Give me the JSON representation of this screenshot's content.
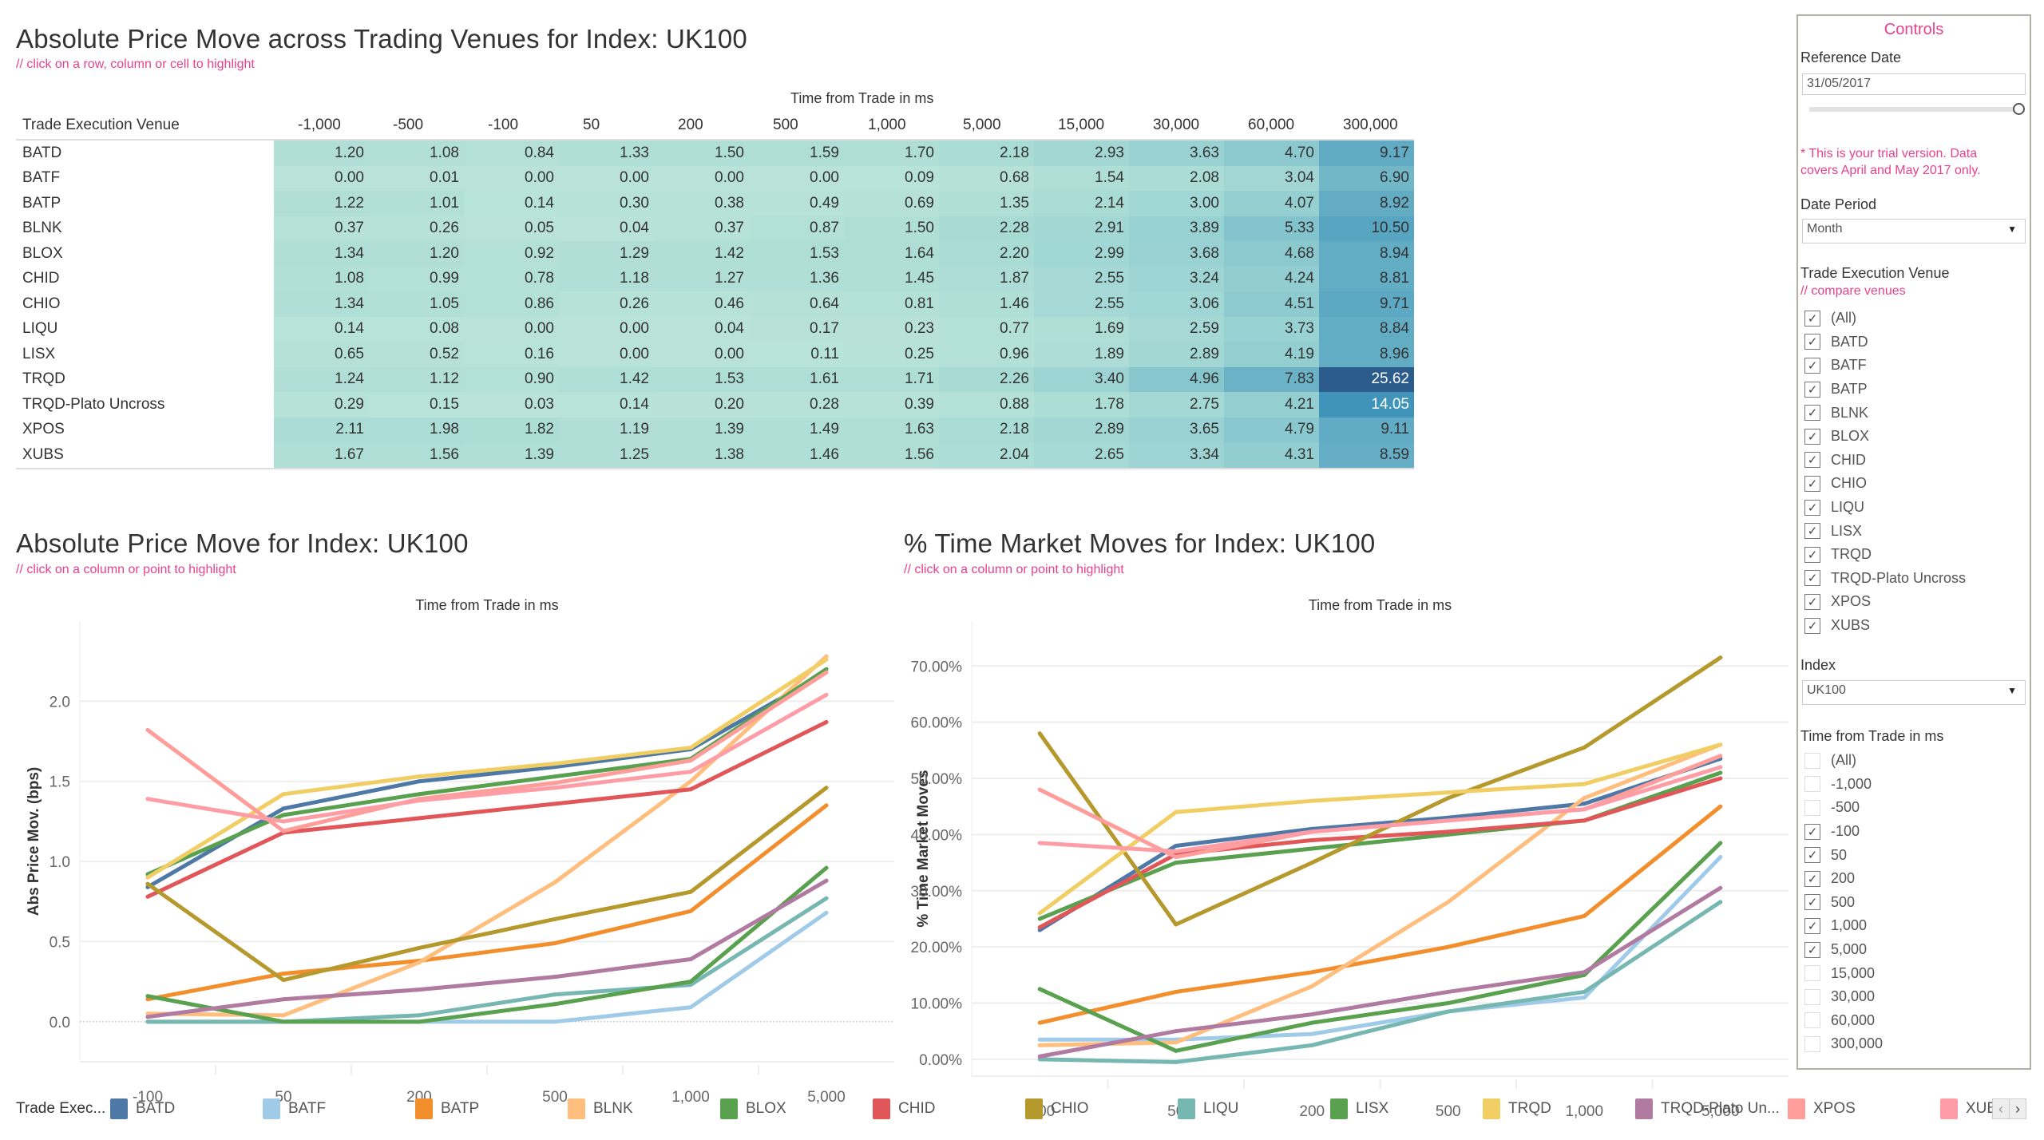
{
  "heatmap": {
    "title": "Absolute Price Move across Trading Venues for Index: UK100",
    "hint": "// click on a row, column or cell to highlight",
    "column_group_label": "Time from Trade in ms",
    "row_header": "Trade Execution Venue",
    "columns": [
      "-1,000",
      "-500",
      "-100",
      "50",
      "200",
      "500",
      "1,000",
      "5,000",
      "15,000",
      "30,000",
      "60,000",
      "300,000"
    ],
    "rows": [
      {
        "venue": "BATD",
        "values": [
          "1.20",
          "1.08",
          "0.84",
          "1.33",
          "1.50",
          "1.59",
          "1.70",
          "2.18",
          "2.93",
          "3.63",
          "4.70",
          "9.17"
        ]
      },
      {
        "venue": "BATF",
        "values": [
          "0.00",
          "0.01",
          "0.00",
          "0.00",
          "0.00",
          "0.00",
          "0.09",
          "0.68",
          "1.54",
          "2.08",
          "3.04",
          "6.90"
        ]
      },
      {
        "venue": "BATP",
        "values": [
          "1.22",
          "1.01",
          "0.14",
          "0.30",
          "0.38",
          "0.49",
          "0.69",
          "1.35",
          "2.14",
          "3.00",
          "4.07",
          "8.92"
        ]
      },
      {
        "venue": "BLNK",
        "values": [
          "0.37",
          "0.26",
          "0.05",
          "0.04",
          "0.37",
          "0.87",
          "1.50",
          "2.28",
          "2.91",
          "3.89",
          "5.33",
          "10.50"
        ]
      },
      {
        "venue": "BLOX",
        "values": [
          "1.34",
          "1.20",
          "0.92",
          "1.29",
          "1.42",
          "1.53",
          "1.64",
          "2.20",
          "2.99",
          "3.68",
          "4.68",
          "8.94"
        ]
      },
      {
        "venue": "CHID",
        "values": [
          "1.08",
          "0.99",
          "0.78",
          "1.18",
          "1.27",
          "1.36",
          "1.45",
          "1.87",
          "2.55",
          "3.24",
          "4.24",
          "8.81"
        ]
      },
      {
        "venue": "CHIO",
        "values": [
          "1.34",
          "1.05",
          "0.86",
          "0.26",
          "0.46",
          "0.64",
          "0.81",
          "1.46",
          "2.55",
          "3.06",
          "4.51",
          "9.71"
        ]
      },
      {
        "venue": "LIQU",
        "values": [
          "0.14",
          "0.08",
          "0.00",
          "0.00",
          "0.04",
          "0.17",
          "0.23",
          "0.77",
          "1.69",
          "2.59",
          "3.73",
          "8.84"
        ]
      },
      {
        "venue": "LISX",
        "values": [
          "0.65",
          "0.52",
          "0.16",
          "0.00",
          "0.00",
          "0.11",
          "0.25",
          "0.96",
          "1.89",
          "2.89",
          "4.19",
          "8.96"
        ]
      },
      {
        "venue": "TRQD",
        "values": [
          "1.24",
          "1.12",
          "0.90",
          "1.42",
          "1.53",
          "1.61",
          "1.71",
          "2.26",
          "3.40",
          "4.96",
          "7.83",
          "25.62"
        ]
      },
      {
        "venue": "TRQD-Plato Uncross",
        "values": [
          "0.29",
          "0.15",
          "0.03",
          "0.14",
          "0.20",
          "0.28",
          "0.39",
          "0.88",
          "1.78",
          "2.75",
          "4.21",
          "14.05"
        ]
      },
      {
        "venue": "XPOS",
        "values": [
          "2.11",
          "1.98",
          "1.82",
          "1.19",
          "1.39",
          "1.49",
          "1.63",
          "2.18",
          "2.89",
          "3.65",
          "4.79",
          "9.11"
        ]
      },
      {
        "venue": "XUBS",
        "values": [
          "1.67",
          "1.56",
          "1.39",
          "1.25",
          "1.38",
          "1.46",
          "1.56",
          "2.04",
          "2.65",
          "3.34",
          "4.31",
          "8.59"
        ]
      }
    ],
    "color_scale": {
      "low": "#b9e3d8",
      "high": "#2b5a8a"
    }
  },
  "chart_data": [
    {
      "type": "line",
      "title": "Absolute Price Move for Index: UK100",
      "hint": "// click on a column or point to highlight",
      "xlabel": "Time from Trade in ms",
      "ylabel": "Abs Price Mov. (bps)",
      "categories": [
        "-100",
        "50",
        "200",
        "500",
        "1,000",
        "5,000"
      ],
      "yticks": [
        "0.0",
        "0.5",
        "1.0",
        "1.5",
        "2.0"
      ],
      "ylim": [
        -0.25,
        2.5
      ],
      "grid": true,
      "series": [
        {
          "name": "BATD",
          "values": [
            0.84,
            1.33,
            1.5,
            1.59,
            1.7,
            2.18
          ]
        },
        {
          "name": "BATF",
          "values": [
            0.0,
            0.0,
            0.0,
            0.0,
            0.09,
            0.68
          ]
        },
        {
          "name": "BATP",
          "values": [
            0.14,
            0.3,
            0.38,
            0.49,
            0.69,
            1.35
          ]
        },
        {
          "name": "BLNK",
          "values": [
            0.05,
            0.04,
            0.37,
            0.87,
            1.5,
            2.28
          ]
        },
        {
          "name": "BLOX",
          "values": [
            0.92,
            1.29,
            1.42,
            1.53,
            1.64,
            2.2
          ]
        },
        {
          "name": "CHID",
          "values": [
            0.78,
            1.18,
            1.27,
            1.36,
            1.45,
            1.87
          ]
        },
        {
          "name": "CHIO",
          "values": [
            0.86,
            0.26,
            0.46,
            0.64,
            0.81,
            1.46
          ]
        },
        {
          "name": "LIQU",
          "values": [
            0.0,
            0.0,
            0.04,
            0.17,
            0.23,
            0.77
          ]
        },
        {
          "name": "LISX",
          "values": [
            0.16,
            0.0,
            0.0,
            0.11,
            0.25,
            0.96
          ]
        },
        {
          "name": "TRQD",
          "values": [
            0.9,
            1.42,
            1.53,
            1.61,
            1.71,
            2.26
          ]
        },
        {
          "name": "TRQD-Plato Uncross",
          "values": [
            0.03,
            0.14,
            0.2,
            0.28,
            0.39,
            0.88
          ]
        },
        {
          "name": "XPOS",
          "values": [
            1.82,
            1.19,
            1.39,
            1.49,
            1.63,
            2.18
          ]
        },
        {
          "name": "XUBS",
          "values": [
            1.39,
            1.25,
            1.38,
            1.46,
            1.56,
            2.04
          ]
        }
      ]
    },
    {
      "type": "line",
      "title": "% Time Market Moves for Index: UK100",
      "hint": "// click on a column or point to highlight",
      "xlabel": "Time from Trade in ms",
      "ylabel": "% Time Market Moves",
      "categories": [
        "-100",
        "50",
        "200",
        "500",
        "1,000",
        "5,000"
      ],
      "yticks": [
        "0.00%",
        "10.00%",
        "20.00%",
        "30.00%",
        "40.00%",
        "50.00%",
        "60.00%",
        "70.00%"
      ],
      "ylim": [
        -3,
        78
      ],
      "grid": true,
      "series": [
        {
          "name": "BATD",
          "values": [
            23.0,
            38.0,
            41.0,
            43.0,
            45.5,
            53.5
          ]
        },
        {
          "name": "BATF",
          "values": [
            3.5,
            3.5,
            4.5,
            8.5,
            11.0,
            36.0
          ]
        },
        {
          "name": "BATP",
          "values": [
            6.5,
            12.0,
            15.5,
            20.0,
            25.5,
            45.0
          ]
        },
        {
          "name": "BLNK",
          "values": [
            2.5,
            3.0,
            13.0,
            28.0,
            46.5,
            56.0
          ]
        },
        {
          "name": "BLOX",
          "values": [
            25.0,
            35.0,
            37.5,
            40.0,
            42.5,
            51.0
          ]
        },
        {
          "name": "CHID",
          "values": [
            23.5,
            36.5,
            39.0,
            40.5,
            42.5,
            50.0
          ]
        },
        {
          "name": "CHIO",
          "values": [
            58.0,
            24.0,
            35.0,
            46.5,
            55.5,
            71.5
          ]
        },
        {
          "name": "LIQU",
          "values": [
            0.0,
            -0.5,
            2.5,
            8.5,
            12.0,
            28.0
          ]
        },
        {
          "name": "LISX",
          "values": [
            12.5,
            1.5,
            6.5,
            10.0,
            15.0,
            38.5
          ]
        },
        {
          "name": "TRQD",
          "values": [
            26.0,
            44.0,
            46.0,
            47.5,
            49.0,
            56.0
          ]
        },
        {
          "name": "TRQD-Plato Uncross",
          "values": [
            0.5,
            5.0,
            8.0,
            12.0,
            15.5,
            30.5
          ]
        },
        {
          "name": "XPOS",
          "values": [
            48.0,
            36.0,
            40.5,
            42.5,
            44.5,
            54.0
          ]
        },
        {
          "name": "XUBS",
          "values": [
            38.5,
            37.0,
            40.5,
            42.5,
            44.5,
            52.0
          ]
        }
      ]
    }
  ],
  "venue_colors": {
    "BATD": "#4e79a7",
    "BATF": "#a0cbe8",
    "BATP": "#f28e2b",
    "BLNK": "#ffbe7d",
    "BLOX": "#59a14f",
    "CHID": "#e15759",
    "CHIO": "#b6992d",
    "LIQU": "#76b7b2",
    "LISX": "#59a14f",
    "TRQD": "#f1ce63",
    "TRQD-Plato Uncross": "#b07aa1",
    "XPOS": "#ff9d9a",
    "XUBS": "#ff9da7"
  },
  "legend": {
    "title": "Trade Exec...",
    "items": [
      "BATD",
      "BATF",
      "BATP",
      "BLNK",
      "BLOX",
      "CHID",
      "CHIO",
      "LIQU",
      "LISX",
      "TRQD",
      "TRQD-Plato Un...",
      "XPOS",
      "XUBS"
    ],
    "prev": "‹",
    "next": "›"
  },
  "controls": {
    "title": "Controls",
    "reference_date_label": "Reference Date",
    "reference_date_value": "31/05/2017",
    "trial_note": "* This is your trial version. Data covers April and May 2017 only.",
    "date_period_label": "Date Period",
    "date_period_value": "Month",
    "venue_label": "Trade Execution Venue",
    "venue_hint": "// compare venues",
    "venues": [
      {
        "label": "(All)",
        "checked": true
      },
      {
        "label": "BATD",
        "checked": true
      },
      {
        "label": "BATF",
        "checked": true
      },
      {
        "label": "BATP",
        "checked": true
      },
      {
        "label": "BLNK",
        "checked": true
      },
      {
        "label": "BLOX",
        "checked": true
      },
      {
        "label": "CHID",
        "checked": true
      },
      {
        "label": "CHIO",
        "checked": true
      },
      {
        "label": "LIQU",
        "checked": true
      },
      {
        "label": "LISX",
        "checked": true
      },
      {
        "label": "TRQD",
        "checked": true
      },
      {
        "label": "TRQD-Plato Uncross",
        "checked": true
      },
      {
        "label": "XPOS",
        "checked": true
      },
      {
        "label": "XUBS",
        "checked": true
      }
    ],
    "index_label": "Index",
    "index_value": "UK100",
    "time_label": "Time from Trade in ms",
    "times": [
      {
        "label": "(All)",
        "checked": false
      },
      {
        "label": "-1,000",
        "checked": false
      },
      {
        "label": "-500",
        "checked": false
      },
      {
        "label": "-100",
        "checked": true
      },
      {
        "label": "50",
        "checked": true
      },
      {
        "label": "200",
        "checked": true
      },
      {
        "label": "500",
        "checked": true
      },
      {
        "label": "1,000",
        "checked": true
      },
      {
        "label": "5,000",
        "checked": true
      },
      {
        "label": "15,000",
        "checked": false
      },
      {
        "label": "30,000",
        "checked": false
      },
      {
        "label": "60,000",
        "checked": false
      },
      {
        "label": "300,000",
        "checked": false
      }
    ]
  }
}
